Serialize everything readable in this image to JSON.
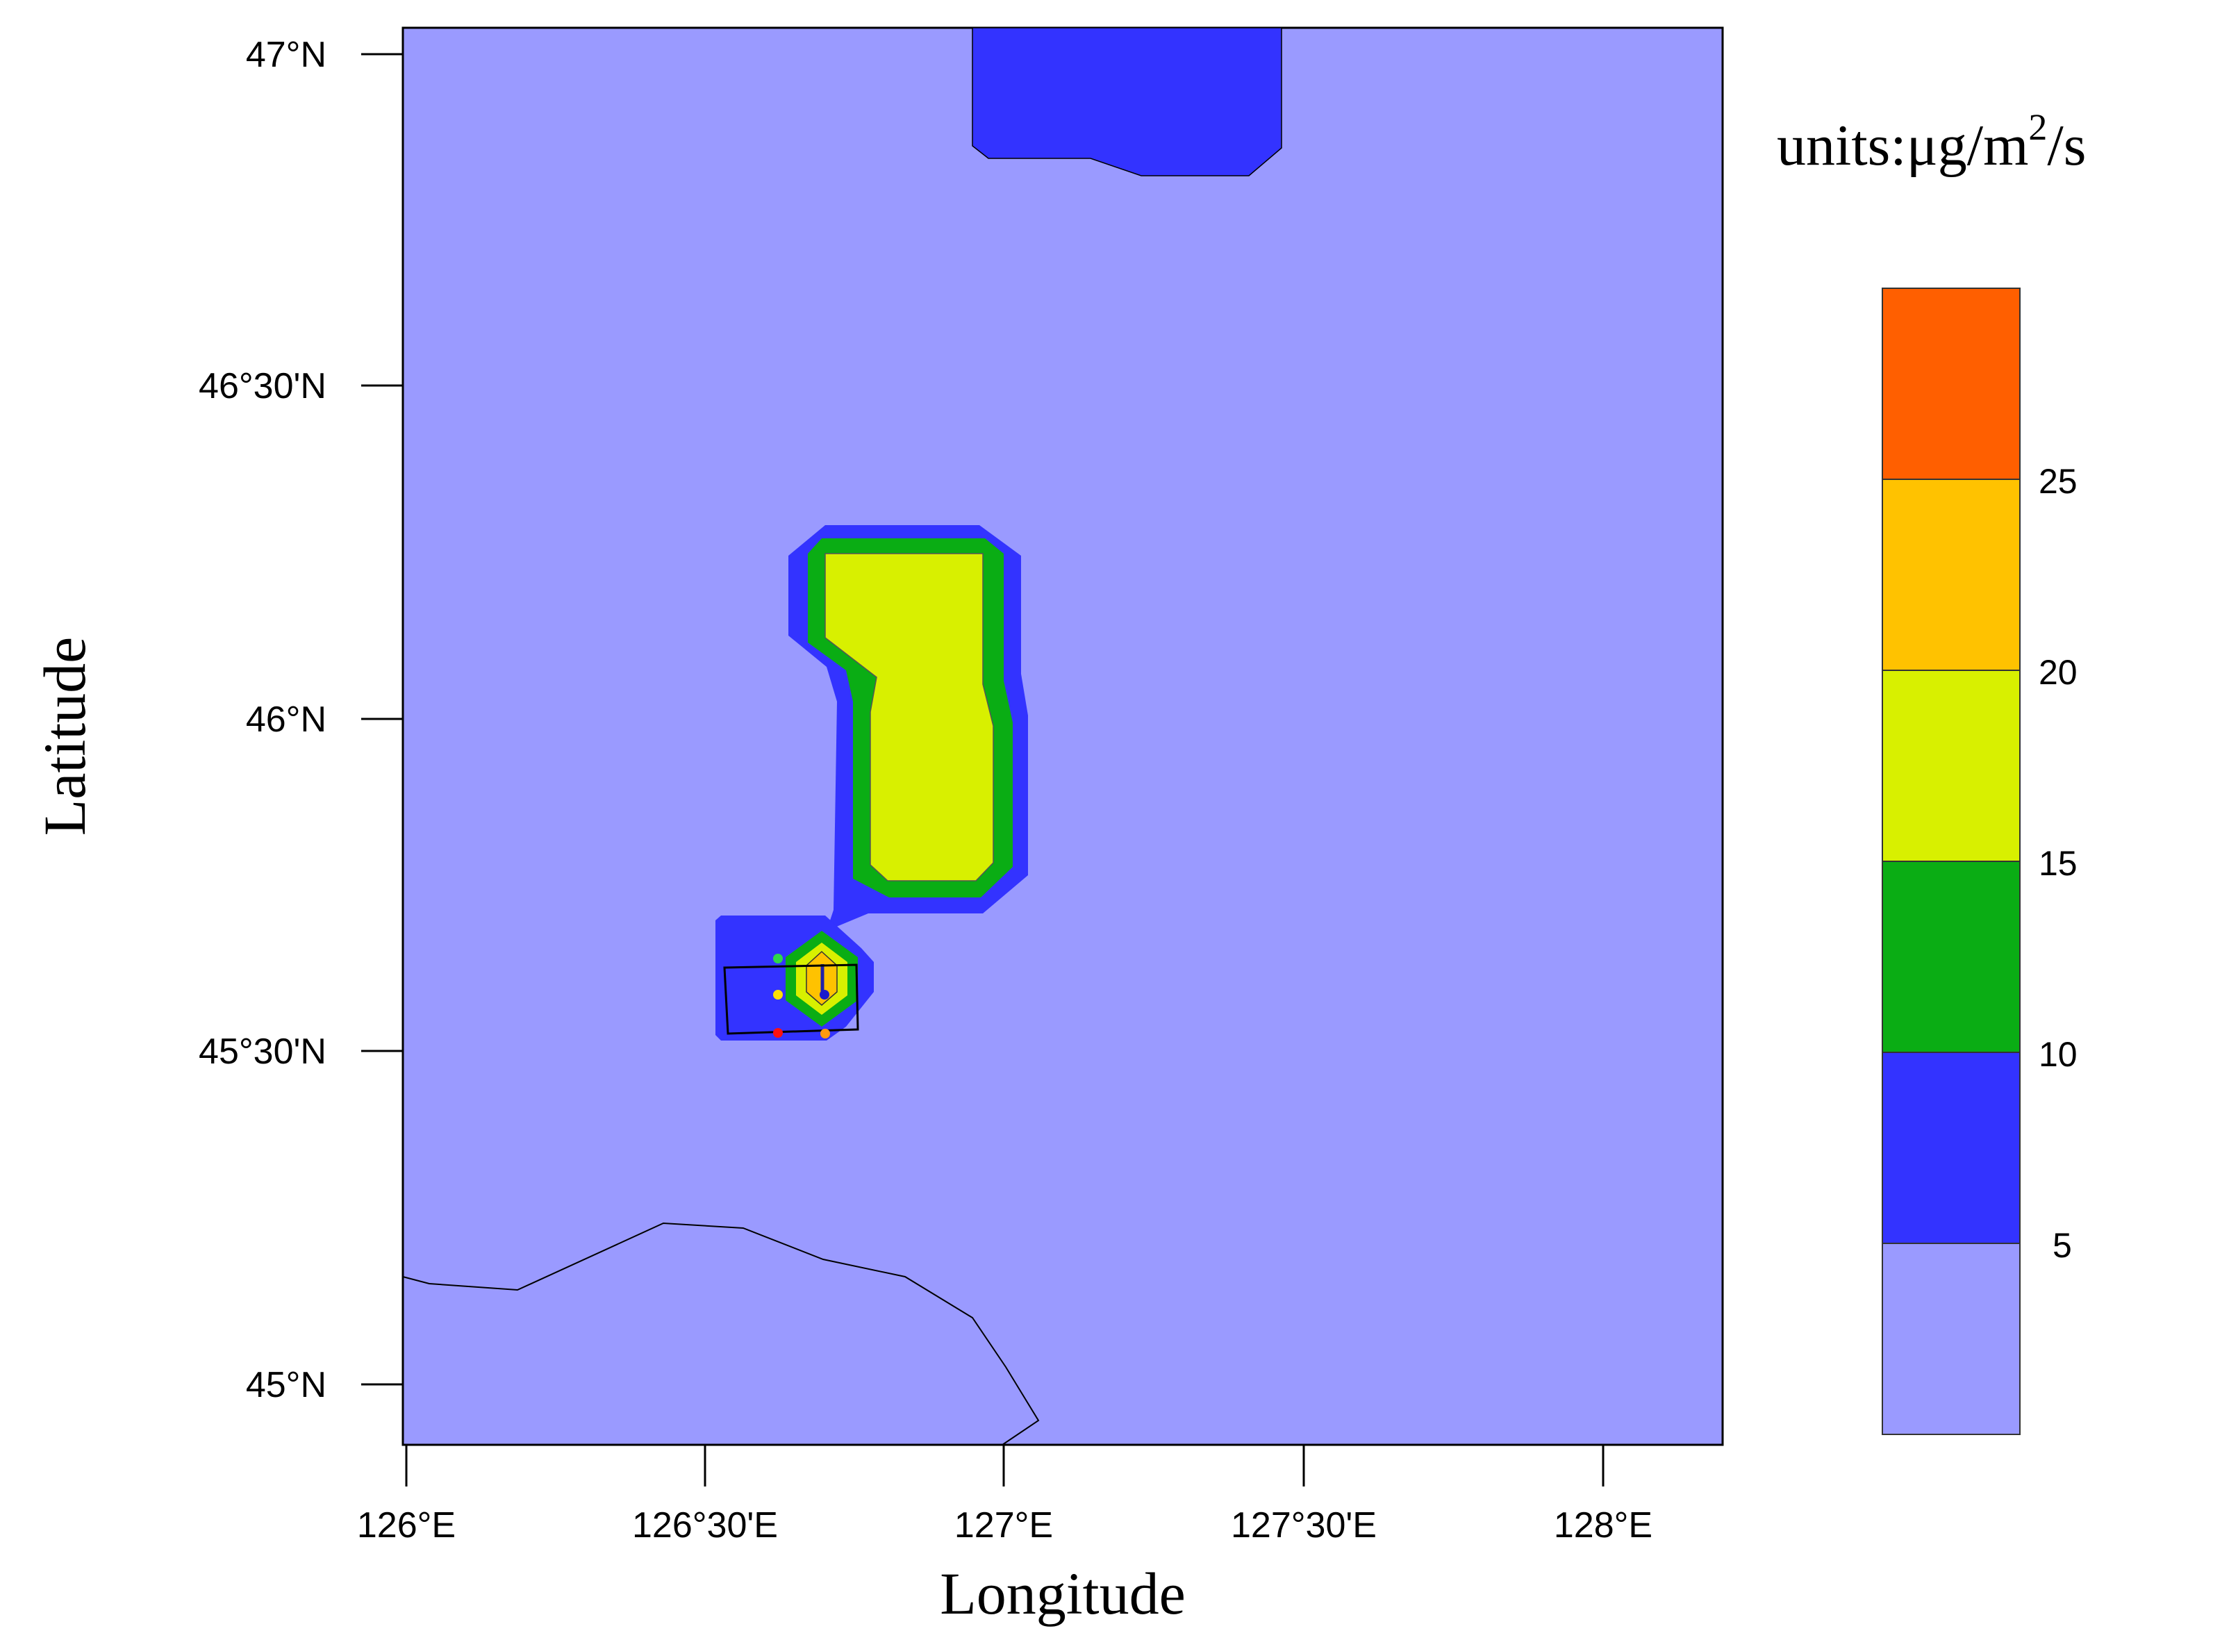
{
  "map": {
    "x_axis": {
      "title": "Longitude",
      "ticks": [
        {
          "value": 126.0,
          "label": "126°E"
        },
        {
          "value": 126.5,
          "label": "126°30'E"
        },
        {
          "value": 127.0,
          "label": "127°E"
        },
        {
          "value": 127.5,
          "label": "127°30'E"
        },
        {
          "value": 128.0,
          "label": "128°E"
        }
      ]
    },
    "y_axis": {
      "title": "Latitude",
      "ticks": [
        {
          "value": 45.0,
          "label": "45°N"
        },
        {
          "value": 45.5,
          "label": "45°30'N"
        },
        {
          "value": 46.0,
          "label": "46°N"
        },
        {
          "value": 46.5,
          "label": "46°30'N"
        },
        {
          "value": 47.0,
          "label": "47°N"
        }
      ]
    },
    "colorbar": {
      "units_prefix": "units:μg/m",
      "units_sup": "2",
      "units_suffix": "/s",
      "levels": [
        "5",
        "10",
        "15",
        "20",
        "25"
      ],
      "bins": [
        {
          "range": "<5",
          "color": "#9a9aff"
        },
        {
          "range": "5-10",
          "color": "#3333ff"
        },
        {
          "range": "10-15",
          "color": "#0aad14"
        },
        {
          "range": "15-20",
          "color": "#d8f000"
        },
        {
          "range": "20-25",
          "color": "#ffc200"
        },
        {
          "range": ">25",
          "color": "#ff5f00"
        }
      ]
    },
    "colors": {
      "background_field": "#9a9aff",
      "level_5_10": "#3333ff",
      "level_10_15": "#0aad14",
      "level_15_20": "#d8f000",
      "level_20_25": "#ffc200"
    }
  }
}
